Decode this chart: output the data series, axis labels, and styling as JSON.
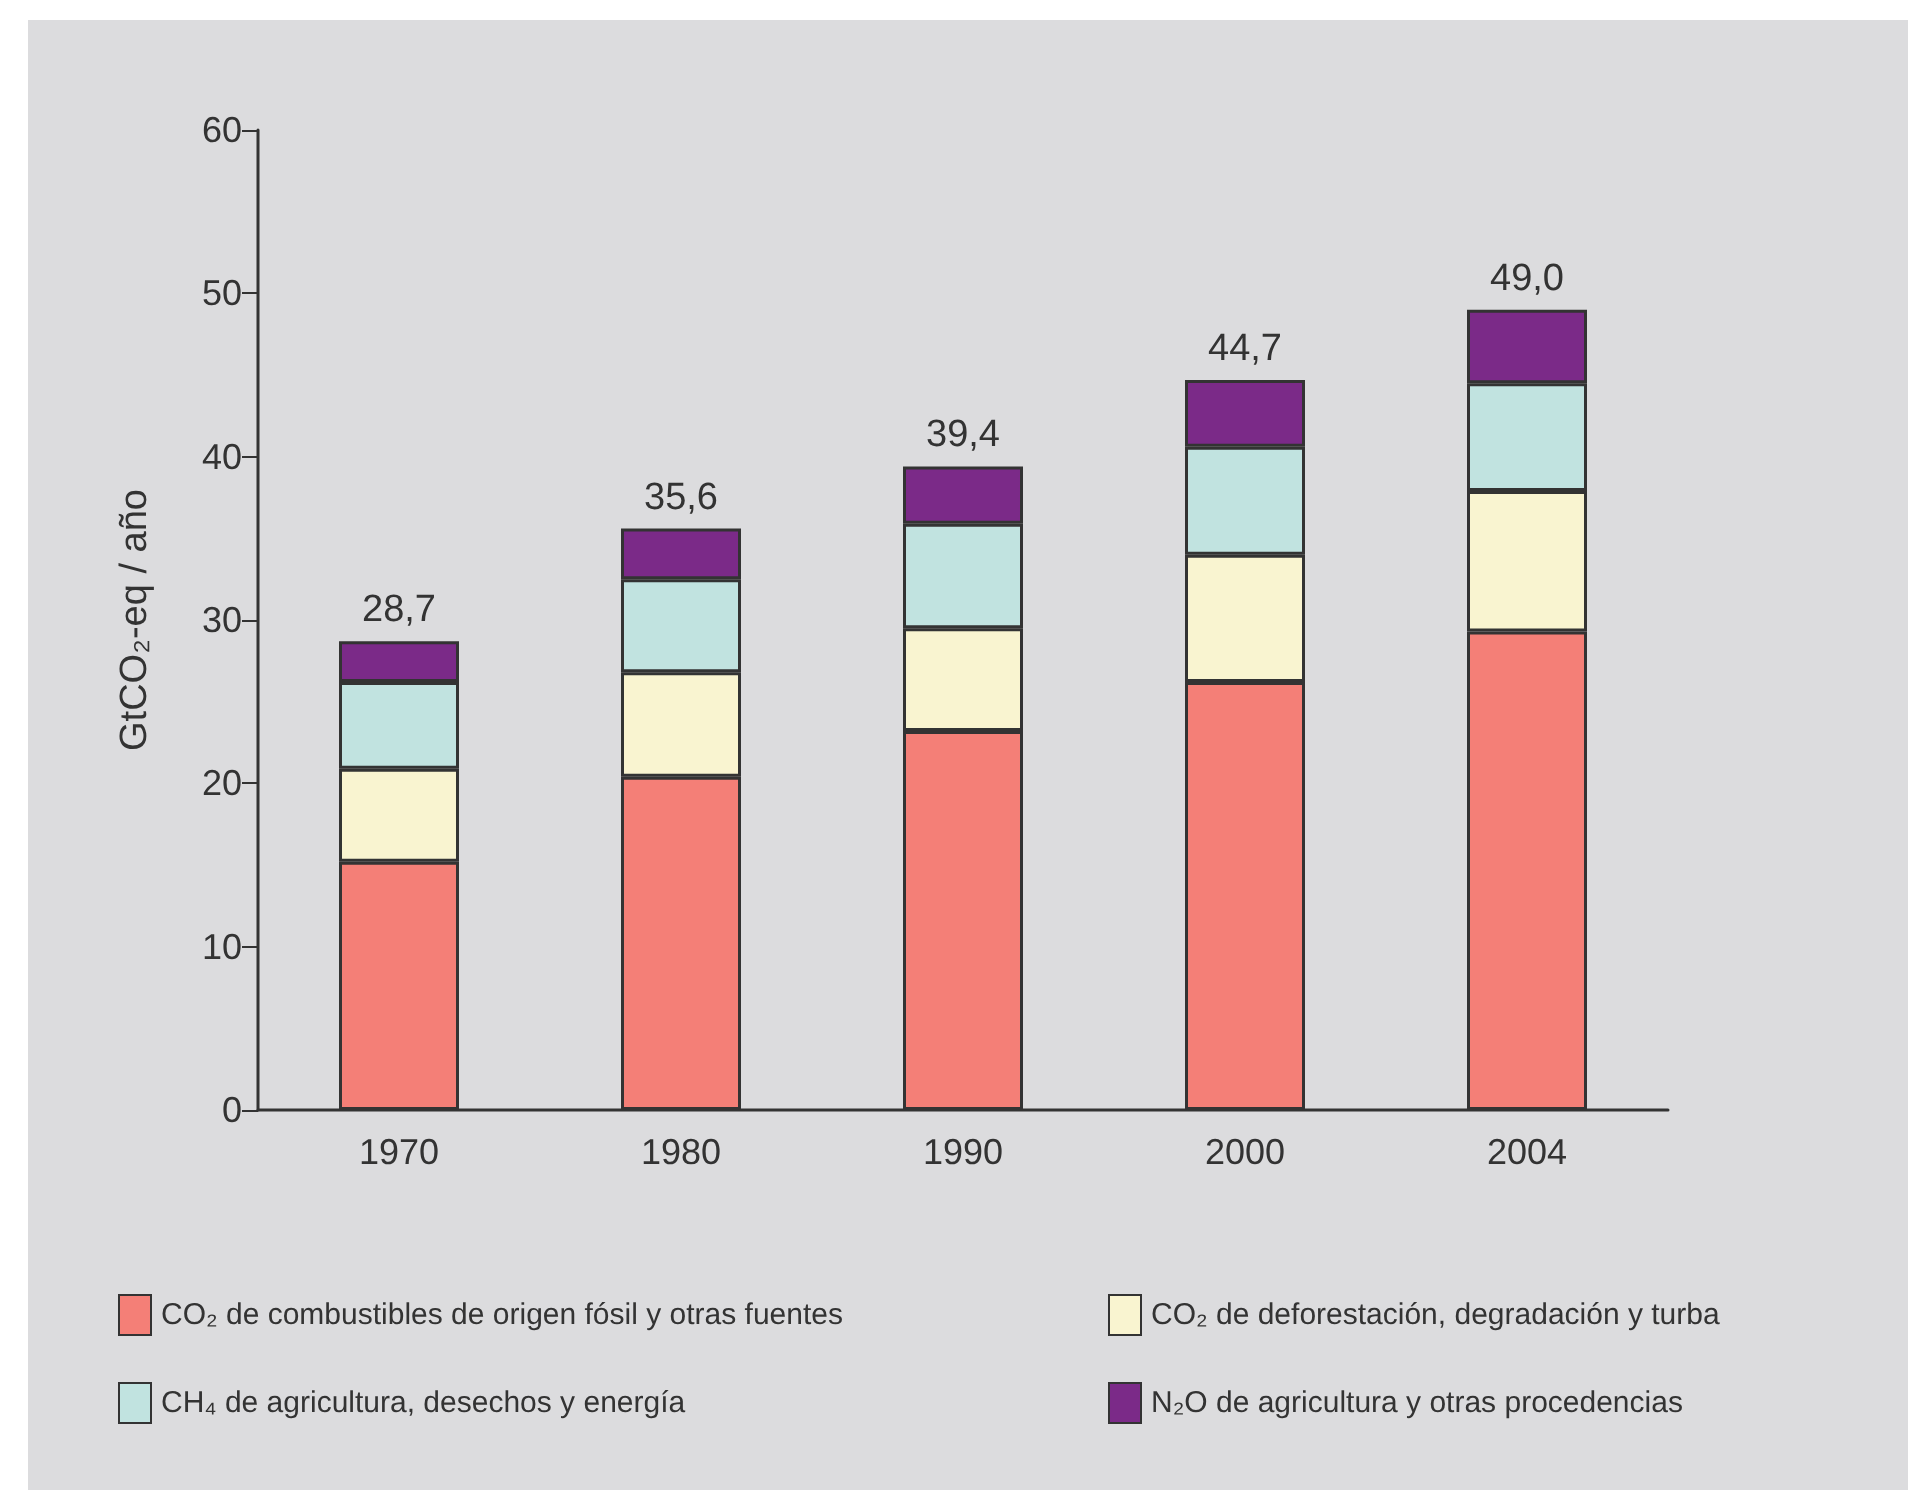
{
  "chart_data": {
    "type": "bar",
    "stacked": true,
    "categories": [
      "1970",
      "1980",
      "1990",
      "2000",
      "2004"
    ],
    "ylabel": "GtCO₂-eq / año",
    "ylim": [
      0,
      60
    ],
    "yticks": [
      0,
      10,
      20,
      30,
      40,
      50,
      60
    ],
    "series": [
      {
        "name": "CO₂ de combustibles de origen fósil y otras fuentes",
        "color": "#f47f77",
        "values": [
          15.2,
          20.4,
          23.2,
          26.2,
          29.3
        ]
      },
      {
        "name": "CO₂ de deforestación, degradación y turba",
        "color": "#f9f4d0",
        "values": [
          5.7,
          6.4,
          6.3,
          7.8,
          8.6
        ]
      },
      {
        "name": "CH₄ de agricultura, desechos y energía",
        "color": "#c1e3e0",
        "values": [
          5.3,
          5.7,
          6.4,
          6.6,
          6.6
        ]
      },
      {
        "name": "N₂O de agricultura y otras procedencias",
        "color": "#7b2a88",
        "values": [
          2.5,
          3.1,
          3.5,
          4.1,
          4.5
        ]
      }
    ],
    "totals": [
      "28,7",
      "35,6",
      "39,4",
      "44,7",
      "49,0"
    ],
    "grid": false,
    "legend": "bottom"
  }
}
